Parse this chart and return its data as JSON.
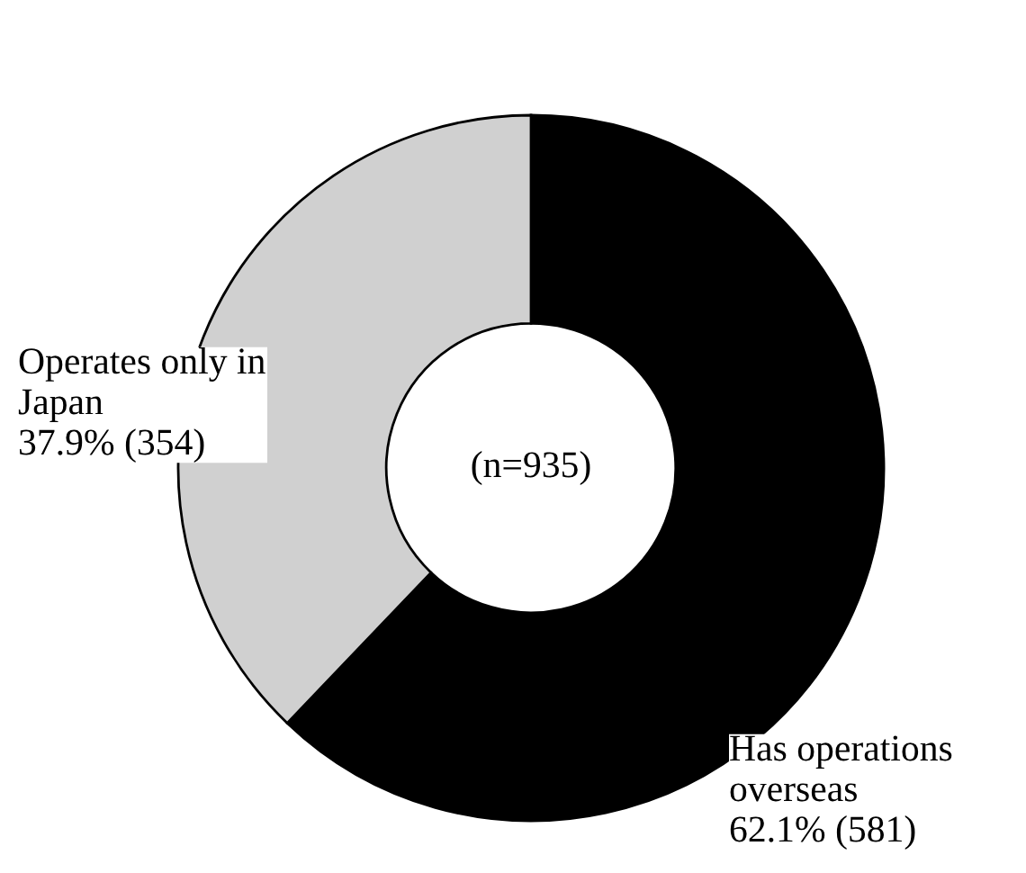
{
  "chart_data": {
    "type": "donut",
    "categories": [
      "Has operations\noverseas",
      "Operates only in\nJapan"
    ],
    "values": [
      581,
      354
    ],
    "value_labels": [
      "62.1% (581)",
      "37.9% (354)"
    ],
    "colors": [
      "#000000",
      "#d0d0d0"
    ],
    "annotations": [
      "(n=935)"
    ]
  }
}
